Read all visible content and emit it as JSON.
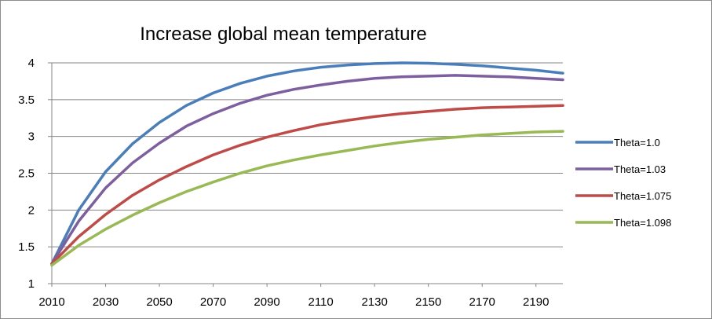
{
  "chart_data": {
    "type": "line",
    "title": "Increase global mean temperature",
    "xlabel": "",
    "ylabel": "",
    "xlim": [
      2010,
      2200
    ],
    "ylim": [
      1,
      4
    ],
    "x_ticks": [
      2010,
      2030,
      2050,
      2070,
      2090,
      2110,
      2130,
      2150,
      2170,
      2190
    ],
    "y_ticks": [
      1,
      1.5,
      2,
      2.5,
      3,
      3.5,
      4
    ],
    "y_tick_labels": [
      "1",
      "1.5",
      "2",
      "2.5",
      "3",
      "3.5",
      "4"
    ],
    "grid": "horizontal",
    "legend_position": "right",
    "x": [
      2010,
      2020,
      2030,
      2040,
      2050,
      2060,
      2070,
      2080,
      2090,
      2100,
      2110,
      2120,
      2130,
      2140,
      2150,
      2160,
      2170,
      2180,
      2190,
      2200
    ],
    "series": [
      {
        "name": "Theta=1.0",
        "color": "#4a7ebb",
        "values": [
          1.27,
          2.0,
          2.52,
          2.9,
          3.19,
          3.42,
          3.59,
          3.72,
          3.82,
          3.89,
          3.94,
          3.97,
          3.99,
          4.0,
          3.995,
          3.98,
          3.96,
          3.93,
          3.9,
          3.86
        ]
      },
      {
        "name": "Theta=1.03",
        "color": "#7d5fa0",
        "values": [
          1.27,
          1.85,
          2.3,
          2.64,
          2.91,
          3.14,
          3.31,
          3.45,
          3.56,
          3.64,
          3.7,
          3.75,
          3.79,
          3.81,
          3.82,
          3.83,
          3.82,
          3.81,
          3.79,
          3.77
        ]
      },
      {
        "name": "Theta=1.075",
        "color": "#be4b48",
        "values": [
          1.27,
          1.64,
          1.94,
          2.2,
          2.41,
          2.59,
          2.75,
          2.88,
          2.99,
          3.08,
          3.16,
          3.22,
          3.27,
          3.31,
          3.34,
          3.37,
          3.39,
          3.4,
          3.41,
          3.42
        ]
      },
      {
        "name": "Theta=1.098",
        "color": "#98b954",
        "values": [
          1.25,
          1.52,
          1.74,
          1.93,
          2.1,
          2.25,
          2.38,
          2.5,
          2.6,
          2.68,
          2.75,
          2.81,
          2.87,
          2.92,
          2.96,
          2.99,
          3.02,
          3.04,
          3.06,
          3.07
        ]
      }
    ]
  }
}
